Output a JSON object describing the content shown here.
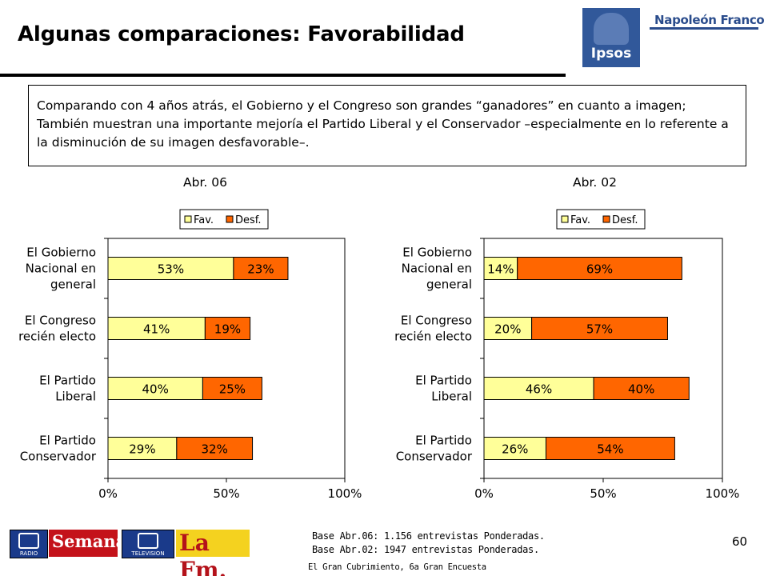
{
  "header": {
    "title": "Algunas comparaciones: Favorabilidad",
    "logo_ipsos": "Ipsos",
    "logo_napoleon": "Napoleón Franco"
  },
  "description": "Comparando con 4 años atrás, el Gobierno y el Congreso son grandes “ganadores” en cuanto a imagen; También muestran una importante mejoría el Partido Liberal y el Conservador –especialmente en lo referente a la disminución de su imagen desfavorable–.",
  "colors": {
    "fav": "#ffff99",
    "desf": "#ff6600"
  },
  "chart_data": [
    {
      "type": "bar",
      "orientation": "horizontal",
      "stacked": true,
      "title": "Abr. 06",
      "categories": [
        "El Gobierno Nacional en general",
        "El Congreso recién electo",
        "El Partido Liberal",
        "El Partido Conservador"
      ],
      "category_lines": [
        [
          "El Gobierno",
          "Nacional en",
          "general"
        ],
        [
          "El Congreso",
          "recién electo"
        ],
        [
          "El Partido",
          "Liberal"
        ],
        [
          "El Partido",
          "Conservador"
        ]
      ],
      "series": [
        {
          "name": "Fav.",
          "values": [
            53,
            41,
            40,
            29
          ],
          "labels": [
            "53%",
            "41%",
            "40%",
            "29%"
          ]
        },
        {
          "name": "Desf.",
          "values": [
            23,
            19,
            25,
            32
          ],
          "labels": [
            "23%",
            "19%",
            "25%",
            "32%"
          ]
        }
      ],
      "xlim": [
        0,
        100
      ],
      "xticks": [
        "0%",
        "50%",
        "100%"
      ],
      "legend_position": "top-right",
      "grid": false
    },
    {
      "type": "bar",
      "orientation": "horizontal",
      "stacked": true,
      "title": "Abr. 02",
      "categories": [
        "El Gobierno Nacional en general",
        "El Congreso recién electo",
        "El Partido Liberal",
        "El Partido Conservador"
      ],
      "category_lines": [
        [
          "El Gobierno",
          "Nacional en",
          "general"
        ],
        [
          "El Congreso",
          "recién electo"
        ],
        [
          "El Partido",
          "Liberal"
        ],
        [
          "El Partido",
          "Conservador"
        ]
      ],
      "series": [
        {
          "name": "Fav.",
          "values": [
            14,
            20,
            46,
            26
          ],
          "labels": [
            "14%",
            "20%",
            "46%",
            "26%"
          ]
        },
        {
          "name": "Desf.",
          "values": [
            69,
            57,
            40,
            54
          ],
          "labels": [
            "69%",
            "57%",
            "40%",
            "54%"
          ]
        }
      ],
      "xlim": [
        0,
        100
      ],
      "xticks": [
        "0%",
        "50%",
        "100%"
      ],
      "legend_position": "top-right",
      "grid": false
    }
  ],
  "footer": {
    "base_lines": [
      "Base Abr.06: 1.156 entrevistas Ponderadas.",
      "Base Abr.02: 1947 entrevistas Ponderadas."
    ],
    "source": "El Gran Cubrimiento, 6a Gran Encuesta",
    "page_number": "60",
    "logos": {
      "rcn_radio": "RADIO",
      "semana": "Semana",
      "rcn_tv": "TELEVISION",
      "lafm": "La Fm."
    }
  }
}
